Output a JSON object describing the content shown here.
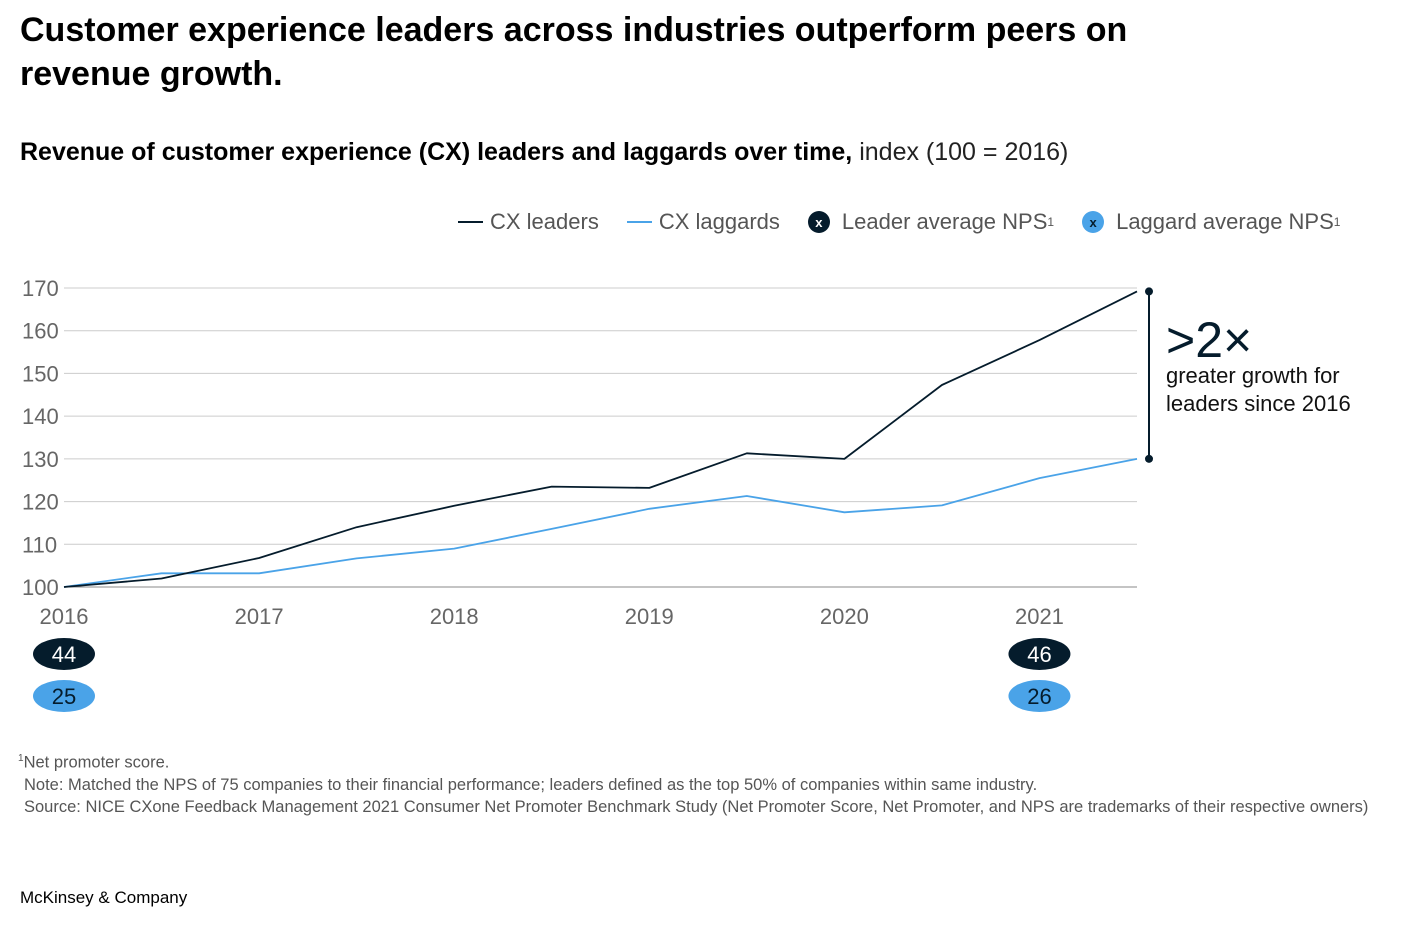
{
  "title": "Customer experience leaders across industries outperform peers on revenue growth.",
  "subtitle_bold": "Revenue of customer experience (CX) leaders and laggards over time,",
  "subtitle_light": "index (100 = 2016)",
  "legend": {
    "leaders": "CX leaders",
    "laggards": "CX laggards",
    "leader_nps": "Leader average NPS",
    "laggard_nps": "Laggard average NPS",
    "sup": "1",
    "marker": "x"
  },
  "colors": {
    "leaders": "#051c2c",
    "laggards": "#4aa3e8",
    "grid": "#cccccc",
    "axis": "#888888"
  },
  "callout": {
    "big": ">2×",
    "text": "greater growth for leaders since 2016"
  },
  "chart_data": {
    "type": "line",
    "title": "Revenue of customer experience (CX) leaders and laggards over time, index (100 = 2016)",
    "x": [
      2016,
      2016.5,
      2017,
      2017.5,
      2018,
      2018.5,
      2019,
      2019.5,
      2020,
      2020.5,
      2021,
      2021.5
    ],
    "x_range": [
      2016,
      2021.5
    ],
    "ylim": [
      100,
      170
    ],
    "yticks": [
      100,
      110,
      120,
      130,
      140,
      150,
      160,
      170
    ],
    "yticks_labels": [
      "100",
      "110",
      "120",
      "130",
      "140",
      "150",
      "160",
      "170"
    ],
    "xticks": [
      2016,
      2017,
      2018,
      2019,
      2020,
      2021
    ],
    "xticks_labels": [
      "2016",
      "2017",
      "2018",
      "2019",
      "2020",
      "2021"
    ],
    "series": [
      {
        "name": "CX leaders",
        "values": [
          100,
          102,
          106.8,
          114,
          119,
          123.5,
          123.2,
          131.3,
          130,
          147.3,
          157.8,
          169.2
        ]
      },
      {
        "name": "CX laggards",
        "values": [
          100,
          103.2,
          103.2,
          106.7,
          109,
          113.6,
          118.3,
          121.3,
          117.5,
          119.1,
          125.5,
          130
        ]
      }
    ],
    "nps": {
      "leader": [
        {
          "x": 2016,
          "value": "44"
        },
        {
          "x": 2021,
          "value": "46"
        }
      ],
      "laggard": [
        {
          "x": 2016,
          "value": "25"
        },
        {
          "x": 2021,
          "value": "26"
        }
      ]
    },
    "annotation_range": [
      130,
      169.2
    ]
  },
  "footnotes": {
    "fn1_sup": "1",
    "fn1": "Net promoter score.",
    "note": "Note: Matched the NPS of 75 companies to their financial performance; leaders defined as the top 50% of companies within same industry.",
    "source": "Source: NICE CXone Feedback Management 2021 Consumer Net Promoter Benchmark Study (Net Promoter Score, Net Promoter, and NPS are trademarks of their respective owners)"
  },
  "brand": "McKinsey & Company"
}
